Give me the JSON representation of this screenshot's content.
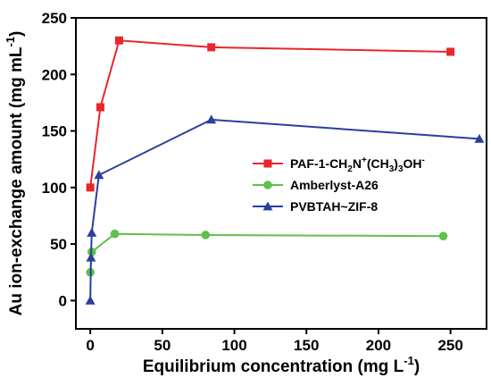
{
  "chart_data": {
    "type": "line",
    "xlabel": "Equilibrium concentration (mg L",
    "xlabel_sup": "-1",
    "xlabel_close": ")",
    "ylabel": "Au ion-exchange amount (mg mL",
    "ylabel_sup": "-1",
    "ylabel_close": ")",
    "xlim": [
      -10,
      275
    ],
    "ylim": [
      -25,
      250
    ],
    "xticks": [
      0,
      50,
      100,
      150,
      200,
      250
    ],
    "yticks": [
      0,
      50,
      100,
      150,
      200,
      250
    ],
    "legend_position": "center-right",
    "series": [
      {
        "name": "PAF-1-CH2N+(CH3)3OH-",
        "legend_parts": [
          {
            "t": "PAF-1-CH",
            "s": "n"
          },
          {
            "t": "2",
            "s": "sub"
          },
          {
            "t": "N",
            "s": "n"
          },
          {
            "t": "+",
            "s": "sup"
          },
          {
            "t": "(CH",
            "s": "n"
          },
          {
            "t": "3",
            "s": "sub"
          },
          {
            "t": ")",
            "s": "n"
          },
          {
            "t": "3",
            "s": "sub"
          },
          {
            "t": "OH",
            "s": "n"
          },
          {
            "t": "-",
            "s": "sup"
          }
        ],
        "color": "#e8262b",
        "marker": "square",
        "x": [
          0,
          7,
          20,
          84,
          250
        ],
        "y": [
          100,
          171,
          230,
          224,
          220
        ]
      },
      {
        "name": "Amberlyst-A26",
        "legend_parts": [
          {
            "t": "Amberlyst-A26",
            "s": "n"
          }
        ],
        "color": "#5ec14b",
        "marker": "circle",
        "x": [
          0,
          1,
          17,
          80,
          245
        ],
        "y": [
          25,
          43,
          59,
          58,
          57
        ]
      },
      {
        "name": "PVBTAH~ZIF-8",
        "legend_parts": [
          {
            "t": "PVBTAH~ZIF-8",
            "s": "n"
          }
        ],
        "color": "#2b3ea0",
        "marker": "triangle",
        "x": [
          0,
          0.5,
          1,
          6,
          84,
          270
        ],
        "y": [
          0,
          38,
          60,
          111,
          160,
          143
        ]
      }
    ]
  }
}
